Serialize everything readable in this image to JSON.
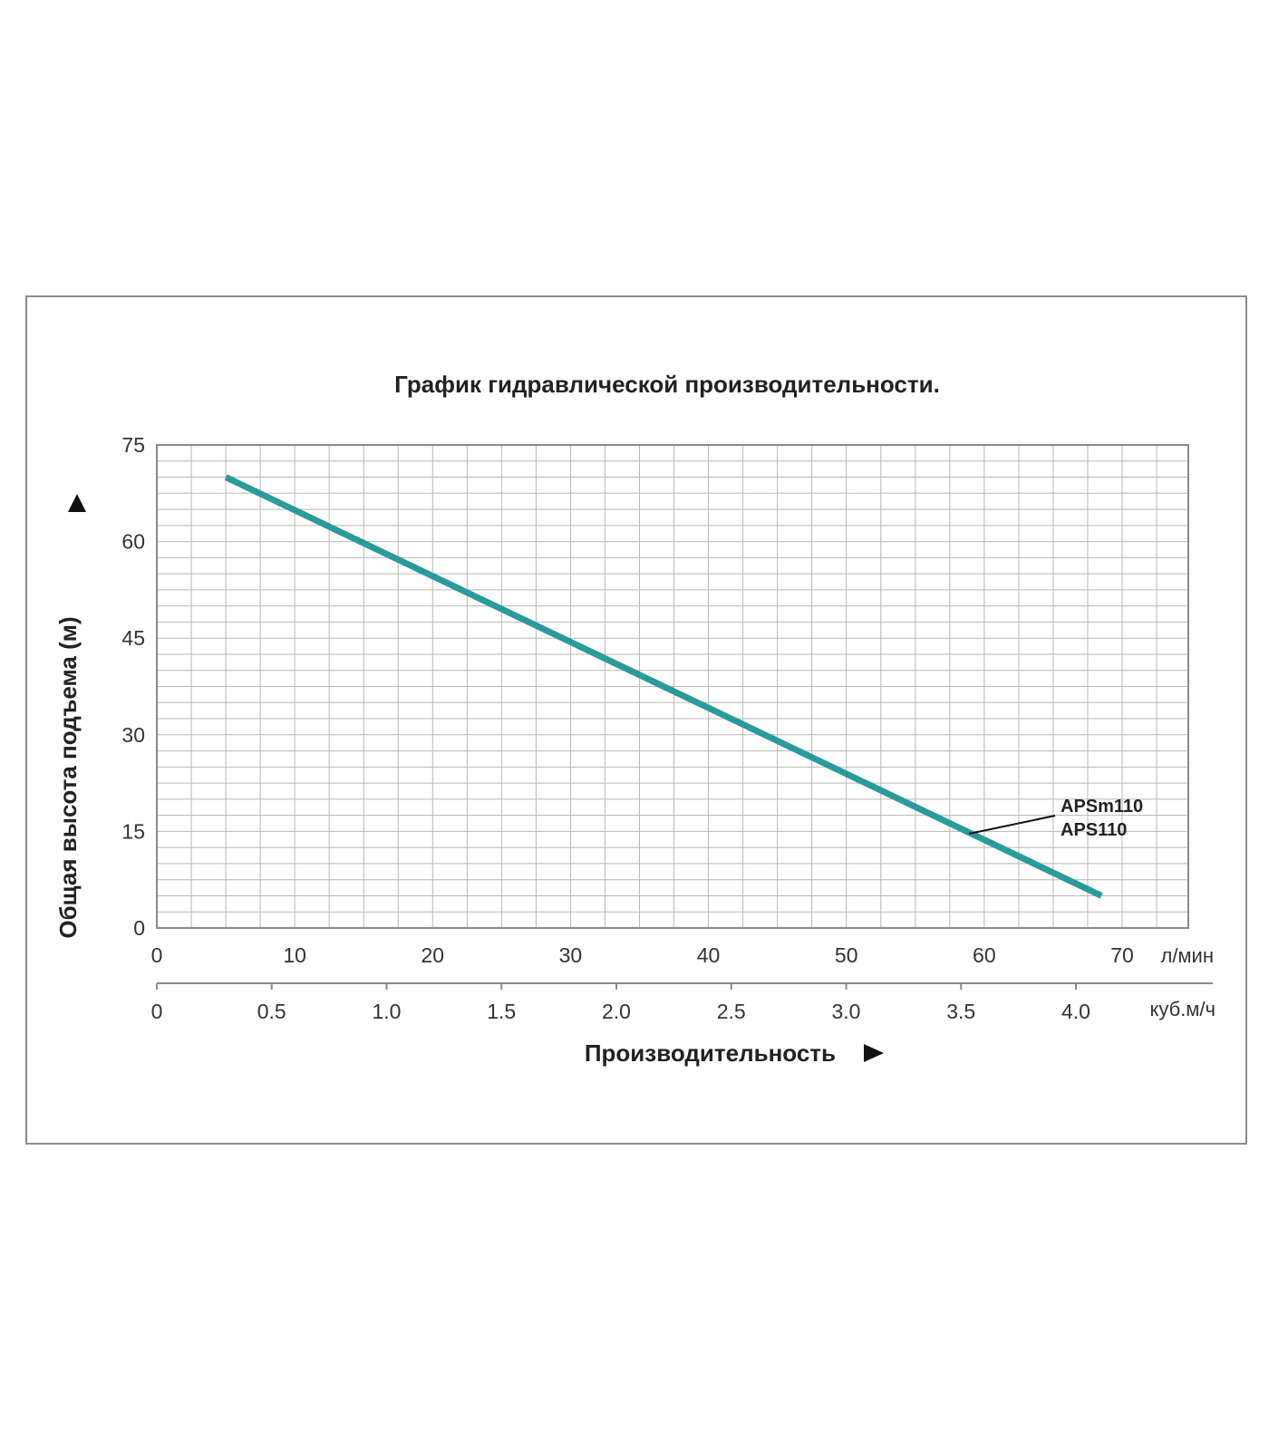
{
  "colors": {
    "curve": "#2a9a9a",
    "grid": "#b8b8b8",
    "frame": "#8a8a8a",
    "text": "#222222"
  },
  "chart_data": {
    "type": "line",
    "title": "График гидравлической производительности.",
    "ylabel": "Общая высота подъема (м)",
    "xlabel": "Производительность",
    "ylim": [
      0,
      75
    ],
    "xlim": [
      0,
      75
    ],
    "grid": true,
    "y_ticks": [
      "0",
      "15",
      "30",
      "45",
      "60",
      "75"
    ],
    "x_ticks_primary": [
      "0",
      "10",
      "20",
      "30",
      "40",
      "50",
      "60",
      "70"
    ],
    "x_unit_primary": "л/мин",
    "x_ticks_secondary": [
      "0",
      "0.5",
      "1.0",
      "1.5",
      "2.0",
      "2.5",
      "3.0",
      "3.5",
      "4.0"
    ],
    "x_unit_secondary": "куб.м/ч",
    "series": [
      {
        "labels": [
          "APSm110",
          "APS110"
        ],
        "points": [
          [
            5,
            70
          ],
          [
            68.5,
            5
          ]
        ]
      }
    ]
  }
}
